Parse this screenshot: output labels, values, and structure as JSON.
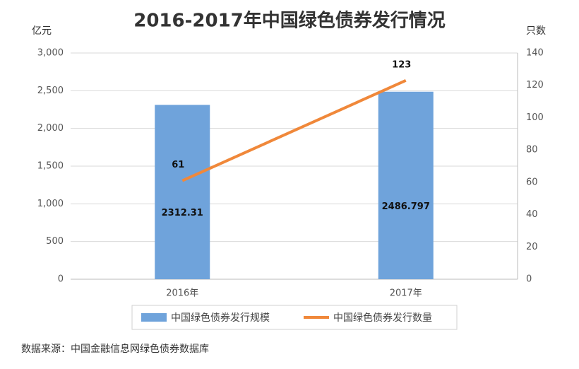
{
  "chart_data": {
    "type": "combo",
    "title": "2016-2017年中国绿色债券发行情况",
    "y_label": "亿元",
    "y2_label": "只数",
    "categories": [
      "2016年",
      "2017年"
    ],
    "series": [
      {
        "name": "中国绿色债券发行规模",
        "type": "bar",
        "color": "#6fa3db",
        "values": [
          2312.31,
          2486.797
        ]
      },
      {
        "name": "中国绿色债券发行数量",
        "type": "line",
        "color": "#f0883a",
        "axis": "y2",
        "values": [
          61,
          123
        ]
      }
    ],
    "ylim": [
      0,
      3000
    ],
    "yticks": [
      0,
      500,
      {
        "value": 1000,
        "label": "1,000"
      },
      {
        "value": 1500,
        "label": "1,500"
      },
      {
        "value": 2000,
        "label": "2,000"
      },
      {
        "value": 2500,
        "label": "2,500"
      },
      {
        "value": 3000,
        "label": "3,000"
      }
    ],
    "y2lim": [
      0,
      140
    ],
    "y2ticks": [
      0,
      20,
      40,
      60,
      80,
      100,
      120,
      140
    ],
    "grid": true,
    "legend": "bottom",
    "source": "数据来源：中国金融信息网绿色债券数据库"
  }
}
